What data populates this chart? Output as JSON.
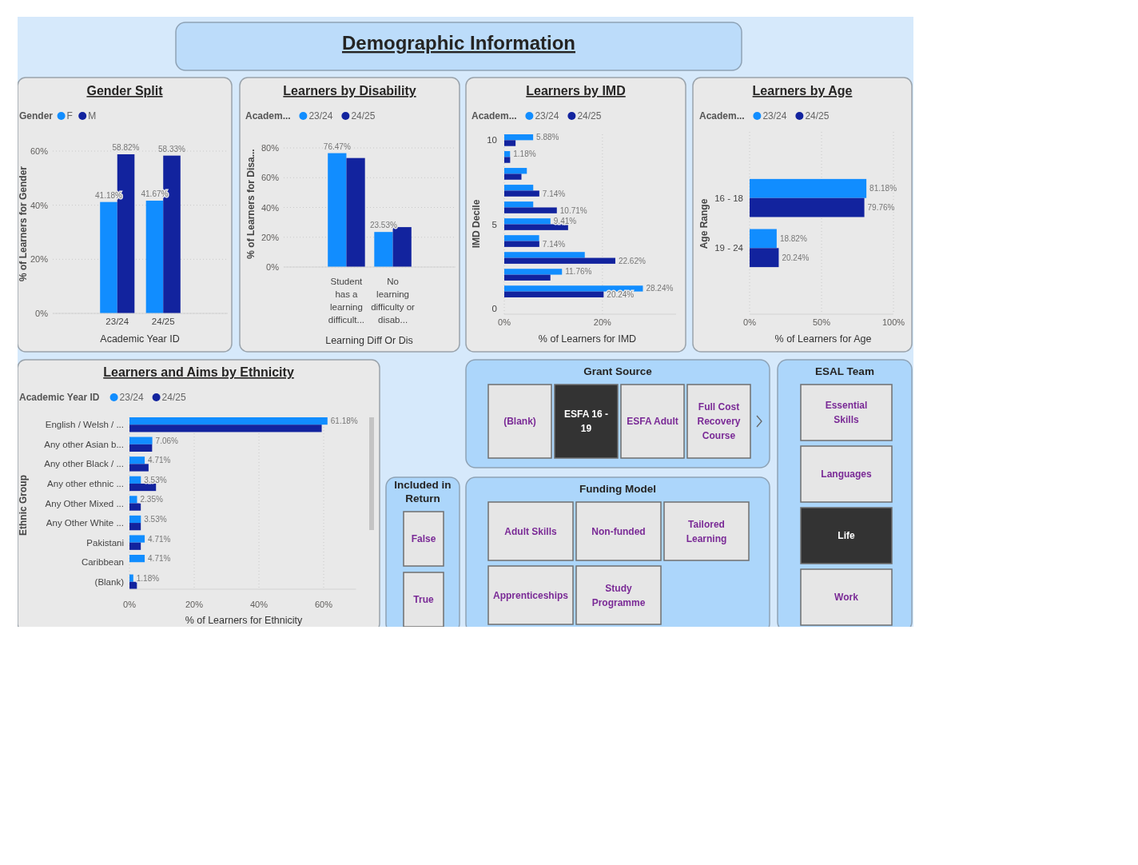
{
  "chart_data": [
    {
      "type": "other",
      "title": "Demographic Information"
    },
    {
      "type": "bar",
      "title": "Gender Split",
      "xlabel": "Academic Year ID",
      "ylabel": "% of Learners for Gender",
      "legend_title": "Gender",
      "legend": "top left",
      "grid": "y",
      "categories": [
        "23/24",
        "24/25"
      ],
      "ylim": [
        0,
        60
      ],
      "yticks": [
        {
          "value": 0,
          "label": "0%"
        },
        {
          "value": 20,
          "label": "20%"
        },
        {
          "value": 40,
          "label": "40%"
        },
        {
          "value": 60,
          "label": "60%"
        }
      ],
      "series": [
        {
          "name": "F",
          "color": "#118dff",
          "values": [
            41.18,
            41.67
          ],
          "value_labels": [
            "41.18%",
            "41.67%"
          ]
        },
        {
          "name": "M",
          "color": "#12239e",
          "values": [
            58.82,
            58.33
          ],
          "value_labels": [
            "58.82%",
            "58.33%"
          ]
        }
      ]
    },
    {
      "type": "bar",
      "title": "Learners by Disability",
      "xlabel": "Learning Diff Or Dis",
      "ylabel": "% of Learners for Disa...",
      "legend_title": "Academ...",
      "legend": "top left",
      "grid": "y",
      "categories": [
        "Student has a learning difficult...",
        "No learning difficulty or disab..."
      ],
      "ylim": [
        0,
        80
      ],
      "yticks": [
        {
          "value": 0,
          "label": "0%"
        },
        {
          "value": 20,
          "label": "20%"
        },
        {
          "value": 40,
          "label": "40%"
        },
        {
          "value": 60,
          "label": "60%"
        },
        {
          "value": 80,
          "label": "80%"
        }
      ],
      "series": [
        {
          "name": "23/24",
          "color": "#118dff",
          "values": [
            76.47,
            23.53
          ],
          "value_labels": [
            "76.47%",
            "23.53%"
          ]
        },
        {
          "name": "24/25",
          "color": "#12239e",
          "values": [
            73.2,
            26.8
          ]
        }
      ]
    },
    {
      "type": "bar",
      "orientation": "horizontal",
      "title": "Learners by IMD",
      "xlabel": "% of Learners for IMD",
      "ylabel": "IMD Decile",
      "legend_title": "Academ...",
      "legend": "top left",
      "grid": "x",
      "categories": [
        "10",
        null,
        null,
        null,
        null,
        "5",
        null,
        null,
        null,
        null,
        "0"
      ],
      "xlim": [
        0,
        35
      ],
      "xticks": [
        {
          "value": 0,
          "label": "0%"
        },
        {
          "value": 20,
          "label": "20%"
        }
      ],
      "series": [
        {
          "name": "23/24",
          "color": "#118dff",
          "values": [
            5.88,
            1.18,
            4.6,
            5.9,
            5.9,
            9.41,
            7.1,
            16.4,
            11.76,
            28.24,
            null
          ],
          "value_labels": [
            "5.88%",
            "1.18%",
            null,
            null,
            null,
            "9.41%",
            null,
            null,
            "11.76%",
            "28.24%",
            null
          ]
        },
        {
          "name": "24/25",
          "color": "#12239e",
          "values": [
            2.3,
            1.2,
            3.5,
            7.14,
            10.71,
            13,
            7.14,
            22.62,
            9.4,
            20.24,
            null
          ],
          "value_labels": [
            null,
            null,
            null,
            "7.14%",
            "10.71%",
            null,
            "7.14%",
            "22.62%",
            null,
            "20.24%",
            null
          ]
        }
      ]
    },
    {
      "type": "bar",
      "orientation": "horizontal",
      "title": "Learners by Age",
      "xlabel": "% of Learners for Age",
      "ylabel": "Age Range",
      "legend_title": "Academ...",
      "legend": "top left",
      "grid": "x",
      "categories": [
        "16 - 18",
        "19 - 24"
      ],
      "xlim": [
        0,
        100
      ],
      "xticks": [
        {
          "value": 0,
          "label": "0%"
        },
        {
          "value": 50,
          "label": "50%"
        },
        {
          "value": 100,
          "label": "100%"
        }
      ],
      "series": [
        {
          "name": "23/24",
          "color": "#118dff",
          "values": [
            81.18,
            18.82
          ],
          "value_labels": [
            "81.18%",
            "18.82%"
          ]
        },
        {
          "name": "24/25",
          "color": "#12239e",
          "values": [
            79.76,
            20.24
          ],
          "value_labels": [
            "79.76%",
            "20.24%"
          ]
        }
      ]
    },
    {
      "type": "bar",
      "orientation": "horizontal",
      "title": "Learners and Aims by Ethnicity",
      "xlabel": "% of Learners for Ethnicity",
      "ylabel": "Ethnic Group",
      "legend_title": "Academic Year ID",
      "legend": "top left",
      "grid": "x",
      "categories": [
        "English / Welsh / ...",
        "Any other Asian b...",
        "Any other Black / ...",
        "Any other ethnic ...",
        "Any Other Mixed ...",
        "Any Other White ...",
        "Pakistani",
        "Caribbean",
        "(Blank)"
      ],
      "xlim": [
        0,
        70
      ],
      "xticks": [
        {
          "value": 0,
          "label": "0%"
        },
        {
          "value": 20,
          "label": "20%"
        },
        {
          "value": 40,
          "label": "40%"
        },
        {
          "value": 60,
          "label": "60%"
        }
      ],
      "series": [
        {
          "name": "23/24",
          "color": "#118dff",
          "values": [
            61.18,
            7.06,
            4.71,
            3.53,
            2.35,
            3.53,
            4.71,
            4.71,
            1.18
          ],
          "value_labels": [
            "61.18%",
            "7.06%",
            "4.71%",
            "3.53%",
            "2.35%",
            "3.53%",
            "4.71%",
            "4.71%",
            "1.18%"
          ]
        },
        {
          "name": "24/25",
          "color": "#12239e",
          "values": [
            59.4,
            7.0,
            5.9,
            8.2,
            3.5,
            3.5,
            3.5,
            null,
            2.3
          ]
        }
      ]
    },
    {
      "type": "other",
      "title": "Grant Source",
      "categories": [
        "(Blank)",
        "ESFA 16 - 19",
        "ESFA Adult",
        "Full Cost Recovery Course"
      ],
      "colors": [
        "#e6e6e6",
        "#333333",
        "#e6e6e6",
        "#e6e6e6"
      ]
    },
    {
      "type": "other",
      "title": "Included in Return",
      "categories": [
        "False",
        "True"
      ],
      "colors": [
        "#e6e6e6",
        "#e6e6e6"
      ]
    },
    {
      "type": "other",
      "title": "Funding Model",
      "categories": [
        "Adult Skills",
        "Non-funded",
        "Tailored Learning",
        "Apprenticeships",
        "Study Programme"
      ],
      "colors": [
        "#e6e6e6",
        "#e6e6e6",
        "#e6e6e6",
        "#e6e6e6",
        "#e6e6e6"
      ]
    },
    {
      "type": "other",
      "title": "ESAL Team",
      "categories": [
        "Essential Skills",
        "Languages",
        "Life",
        "Work"
      ],
      "colors": [
        "#e6e6e6",
        "#e6e6e6",
        "#333333",
        "#e6e6e6"
      ]
    }
  ]
}
